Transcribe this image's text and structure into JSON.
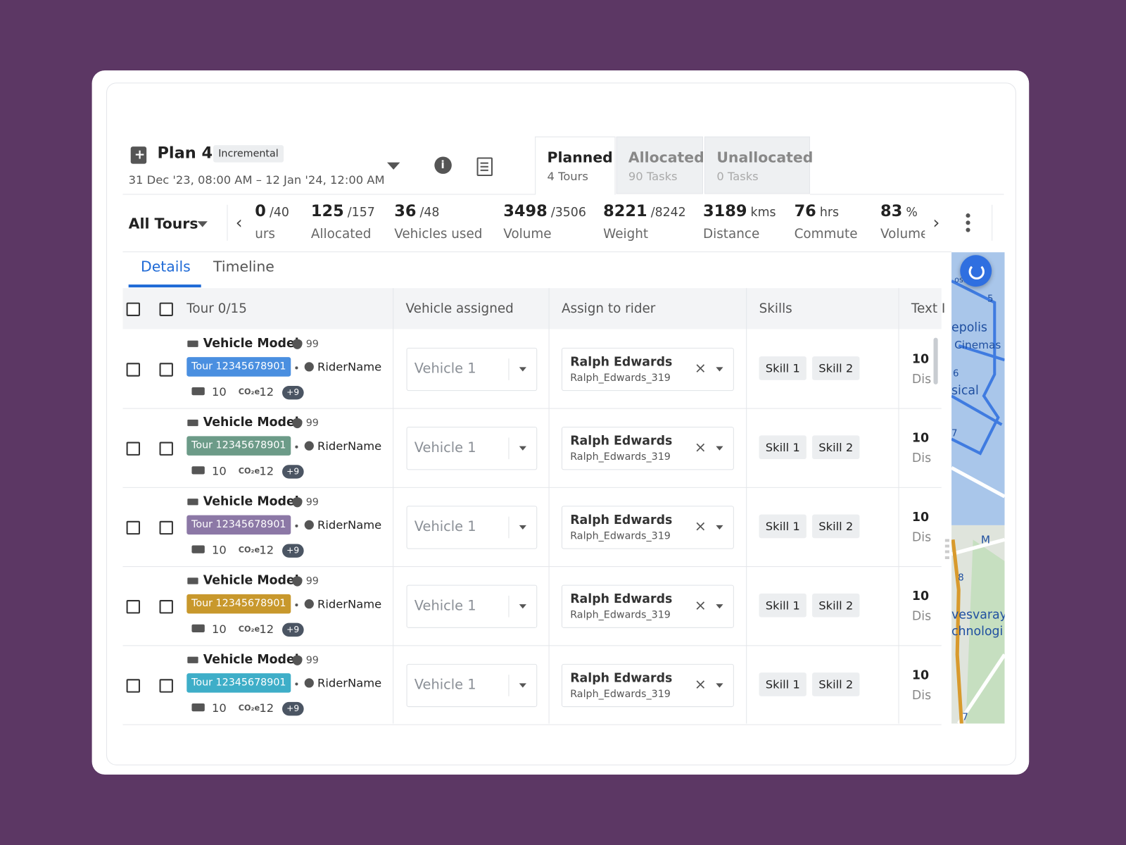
{
  "header": {
    "plan_title": "Plan 4",
    "badge": "Incremental",
    "date_range": "31 Dec '23, 08:00 AM – 12 Jan '24, 12:00 AM"
  },
  "status_tabs": [
    {
      "label": "Planned",
      "sub": "4 Tours"
    },
    {
      "label": "Allocated",
      "sub": "90 Tasks"
    },
    {
      "label": "Unallocated",
      "sub": "0 Tasks"
    }
  ],
  "filter": "All Tours",
  "stats": [
    {
      "value": "0",
      "unit": "/40",
      "label": "urs"
    },
    {
      "value": "125",
      "unit": "/157",
      "label": "Allocated"
    },
    {
      "value": "36",
      "unit": "/48",
      "label": "Vehicles used"
    },
    {
      "value": "3498",
      "unit": "/3506",
      "label": "Volume"
    },
    {
      "value": "8221",
      "unit": "/8242",
      "label": "Weight"
    },
    {
      "value": "3189",
      "unit": "kms",
      "label": "Distance"
    },
    {
      "value": "76",
      "unit": "hrs",
      "label": "Commute"
    },
    {
      "value": "83",
      "unit": "%",
      "label": "Volume"
    }
  ],
  "sub_tabs": [
    "Details",
    "Timeline"
  ],
  "table": {
    "columns": [
      "Tour 0/15",
      "Vehicle assigned",
      "Assign to rider",
      "Skills",
      "Text I"
    ],
    "rows": [
      {
        "vehicle_model": "Vehicle Model",
        "score": "99",
        "tour_id": "Tour 12345678901",
        "tour_color": "#4a8fe0",
        "rider": "RiderName",
        "count": "10",
        "co2_label": "CO₂e",
        "co2": "12",
        "extra": "+9",
        "vehicle": "Vehicle 1",
        "rider_name": "Ralph Edwards",
        "rider_id": "Ralph_Edwards_319",
        "skills": [
          "Skill 1",
          "Skill 2"
        ],
        "text_value": "10",
        "text_sub": "Dis"
      },
      {
        "vehicle_model": "Vehicle Model",
        "score": "99",
        "tour_id": "Tour 12345678901",
        "tour_color": "#6c9b88",
        "rider": "RiderName",
        "count": "10",
        "co2_label": "CO₂e",
        "co2": "12",
        "extra": "+9",
        "vehicle": "Vehicle 1",
        "rider_name": "Ralph Edwards",
        "rider_id": "Ralph_Edwards_319",
        "skills": [
          "Skill 1",
          "Skill 2"
        ],
        "text_value": "10",
        "text_sub": "Dis"
      },
      {
        "vehicle_model": "Vehicle Model",
        "score": "99",
        "tour_id": "Tour 12345678901",
        "tour_color": "#8c78a6",
        "rider": "RiderName",
        "count": "10",
        "co2_label": "CO₂e",
        "co2": "12",
        "extra": "+9",
        "vehicle": "Vehicle 1",
        "rider_name": "Ralph Edwards",
        "rider_id": "Ralph_Edwards_319",
        "skills": [
          "Skill 1",
          "Skill 2"
        ],
        "text_value": "10",
        "text_sub": "Dis"
      },
      {
        "vehicle_model": "Vehicle Model",
        "score": "99",
        "tour_id": "Tour 12345678901",
        "tour_color": "#c8982c",
        "rider": "RiderName",
        "count": "10",
        "co2_label": "CO₂e",
        "co2": "12",
        "extra": "+9",
        "vehicle": "Vehicle 1",
        "rider_name": "Ralph Edwards",
        "rider_id": "Ralph_Edwards_319",
        "skills": [
          "Skill 1",
          "Skill 2"
        ],
        "text_value": "10",
        "text_sub": "Dis"
      },
      {
        "vehicle_model": "Vehicle Model",
        "score": "99",
        "tour_id": "Tour 12345678901",
        "tour_color": "#3eaec8",
        "rider": "RiderName",
        "count": "10",
        "co2_label": "CO₂e",
        "co2": "12",
        "extra": "+9",
        "vehicle": "Vehicle 1",
        "rider_name": "Ralph Edwards",
        "rider_id": "Ralph_Edwards_319",
        "skills": [
          "Skill 1",
          "Skill 2"
        ],
        "text_value": "10",
        "text_sub": "Dis"
      }
    ]
  },
  "map": {
    "labels": [
      "ost",
      "5",
      "epolis",
      "Cinemas",
      "6",
      "sical",
      "7",
      "M",
      "8",
      "vesvaray",
      "chnologi",
      "7"
    ]
  }
}
